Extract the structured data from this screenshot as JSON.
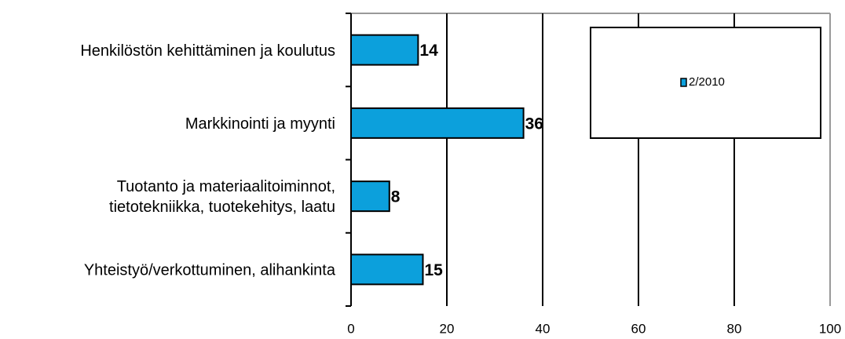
{
  "chart_data": {
    "type": "barh",
    "categories": [
      "Henkilöstön kehittäminen ja koulutus",
      "Markkinointi ja myynti",
      "Tuotanto ja materiaalitoiminnot,\ntietotekniikka, tuotekehitys, laatu",
      "Yhteistyö/verkottuminen, alihankinta"
    ],
    "series": [
      {
        "name": "2/2010",
        "color": "#0ca0dc",
        "values": [
          14,
          36,
          8,
          15
        ]
      }
    ],
    "xlim": [
      0,
      100
    ],
    "xticks": [
      0,
      20,
      40,
      60,
      80,
      100
    ],
    "grid": true,
    "legend": "top-right"
  }
}
